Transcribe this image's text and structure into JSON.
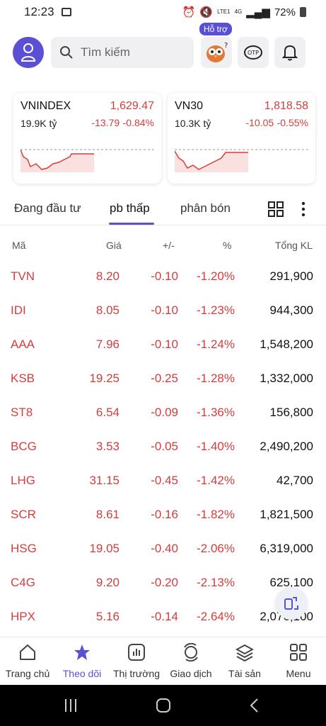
{
  "status_bar": {
    "time": "12:23",
    "battery": "72%",
    "net": "4G",
    "lte": "LTE1"
  },
  "header": {
    "search_placeholder": "Tìm kiếm",
    "support_badge": "Hỗ trợ",
    "otp_label": "OTP"
  },
  "indices": [
    {
      "name": "VNINDEX",
      "value": "1,629.47",
      "volume": "19.9K tỷ",
      "change": "-13.79",
      "percent": "-0.84%"
    },
    {
      "name": "VN30",
      "value": "1,818.58",
      "volume": "10.3K tỷ",
      "change": "-10.05",
      "percent": "-0.55%"
    }
  ],
  "tabs": [
    "Đang đầu tư",
    "pb thấp",
    "phân bón"
  ],
  "columns": {
    "symbol": "Mã",
    "price": "Giá",
    "change": "+/-",
    "percent": "%",
    "volume": "Tổng KL"
  },
  "rows": [
    {
      "symbol": "TVN",
      "price": "8.20",
      "change": "-0.10",
      "percent": "-1.20%",
      "volume": "291,900"
    },
    {
      "symbol": "IDI",
      "price": "8.05",
      "change": "-0.10",
      "percent": "-1.23%",
      "volume": "944,300"
    },
    {
      "symbol": "AAA",
      "price": "7.96",
      "change": "-0.10",
      "percent": "-1.24%",
      "volume": "1,548,200"
    },
    {
      "symbol": "KSB",
      "price": "19.25",
      "change": "-0.25",
      "percent": "-1.28%",
      "volume": "1,332,000"
    },
    {
      "symbol": "ST8",
      "price": "6.54",
      "change": "-0.09",
      "percent": "-1.36%",
      "volume": "156,800"
    },
    {
      "symbol": "BCG",
      "price": "3.53",
      "change": "-0.05",
      "percent": "-1.40%",
      "volume": "2,490,200"
    },
    {
      "symbol": "LHG",
      "price": "31.15",
      "change": "-0.45",
      "percent": "-1.42%",
      "volume": "42,700"
    },
    {
      "symbol": "SCR",
      "price": "8.61",
      "change": "-0.16",
      "percent": "-1.82%",
      "volume": "1,821,500"
    },
    {
      "symbol": "HSG",
      "price": "19.05",
      "change": "-0.40",
      "percent": "-2.06%",
      "volume": "6,319,000"
    },
    {
      "symbol": "C4G",
      "price": "9.20",
      "change": "-0.20",
      "percent": "-2.13%",
      "volume": "625,100"
    },
    {
      "symbol": "HPX",
      "price": "5.16",
      "change": "-0.14",
      "percent": "-2.64%",
      "volume": "2,076,100"
    }
  ],
  "nav": [
    "Trang chủ",
    "Theo dõi",
    "Thị trường",
    "Giao dịch",
    "Tài sản",
    "Menu"
  ],
  "colors": {
    "accent": "#5b4fd6",
    "down": "#d63c3c"
  }
}
